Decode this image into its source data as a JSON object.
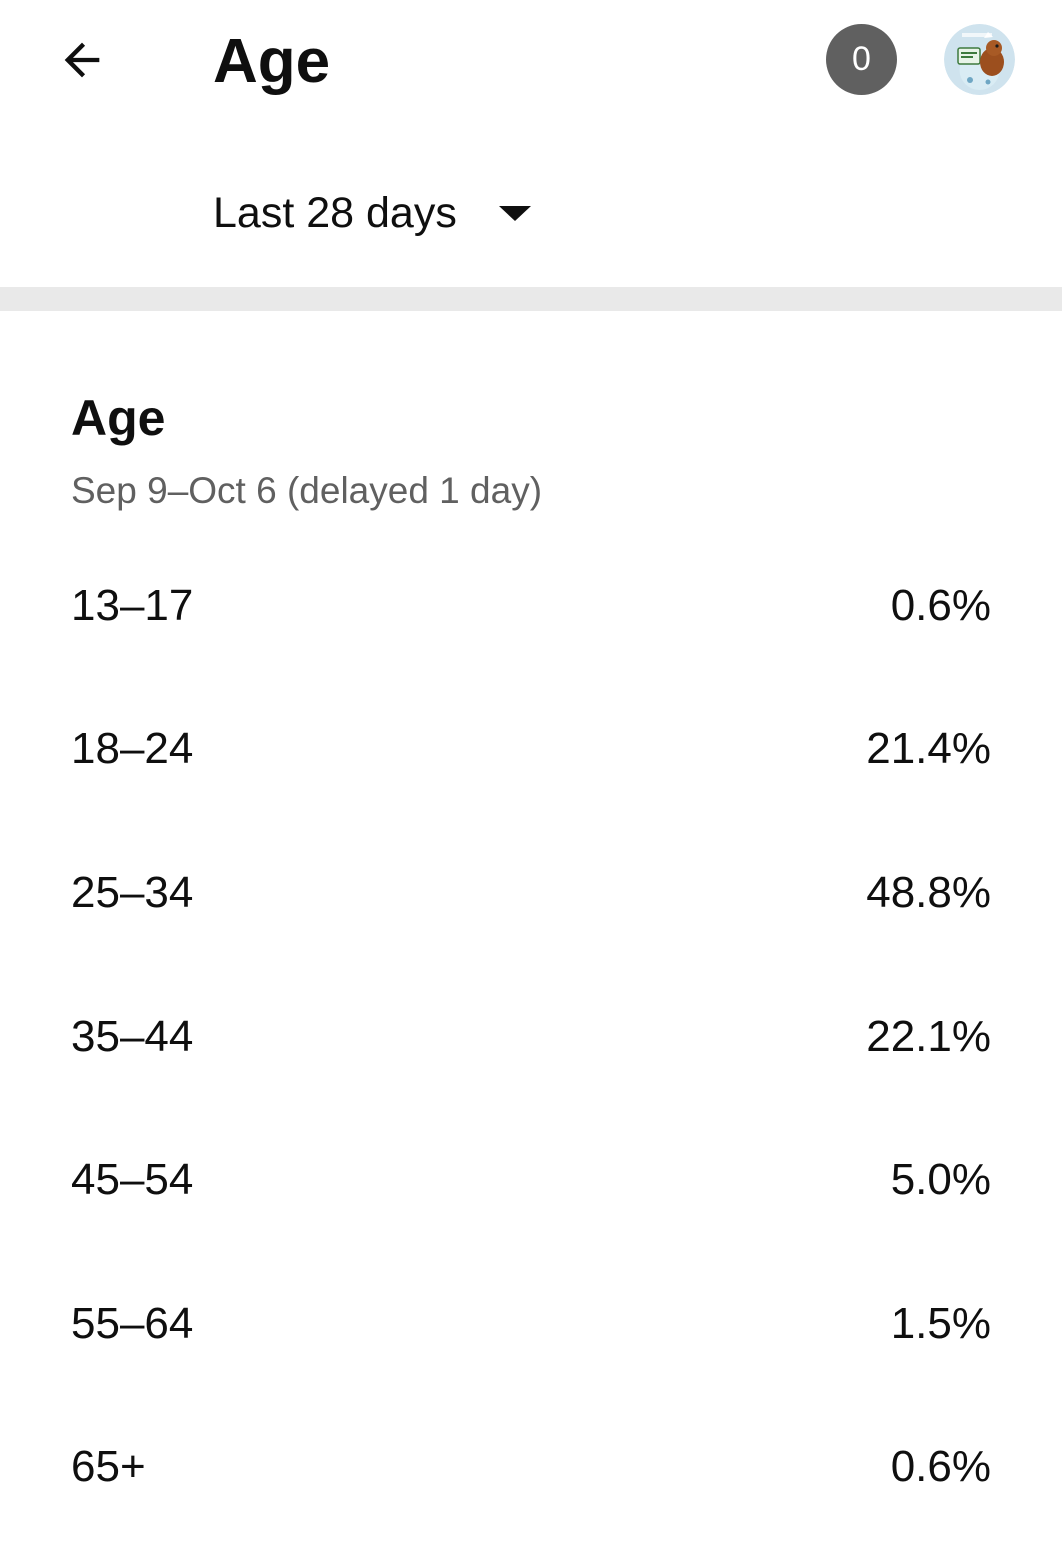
{
  "header": {
    "title": "Age",
    "notification_count": "0"
  },
  "period": {
    "label": "Last 28 days"
  },
  "section": {
    "title": "Age",
    "subtitle": "Sep 9–Oct 6 (delayed 1 day)"
  },
  "age_rows": [
    {
      "range": "13–17",
      "percent": "0.6%"
    },
    {
      "range": "18–24",
      "percent": "21.4%"
    },
    {
      "range": "25–34",
      "percent": "48.8%"
    },
    {
      "range": "35–44",
      "percent": "22.1%"
    },
    {
      "range": "45–54",
      "percent": "5.0%"
    },
    {
      "range": "55–64",
      "percent": "1.5%"
    },
    {
      "range": "65+",
      "percent": "0.6%"
    }
  ],
  "icons": {
    "back": "arrow-back-icon",
    "period_dropdown": "caret-down-icon"
  }
}
